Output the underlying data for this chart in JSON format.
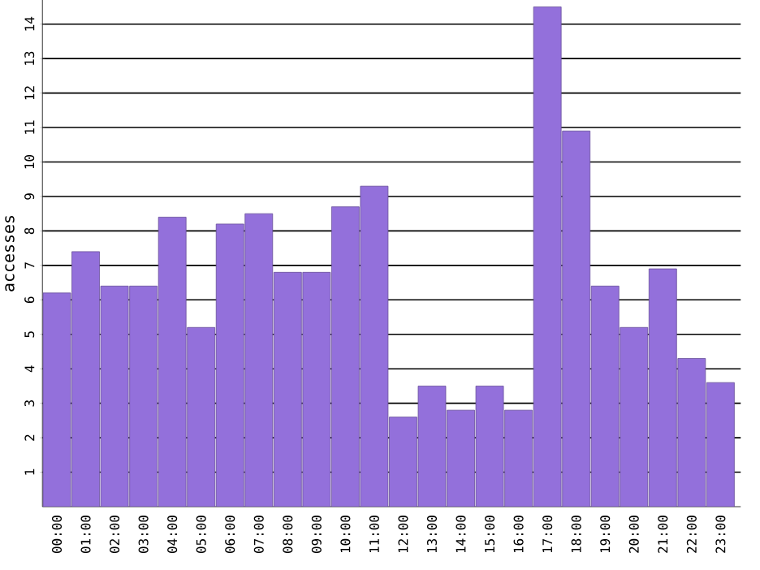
{
  "chart_data": {
    "type": "bar",
    "ylabel": "accesses",
    "categories": [
      "00:00",
      "01:00",
      "02:00",
      "03:00",
      "04:00",
      "05:00",
      "06:00",
      "07:00",
      "08:00",
      "09:00",
      "10:00",
      "11:00",
      "12:00",
      "13:00",
      "14:00",
      "15:00",
      "16:00",
      "17:00",
      "18:00",
      "19:00",
      "20:00",
      "21:00",
      "22:00",
      "23:00"
    ],
    "values": [
      6.2,
      7.4,
      6.4,
      6.4,
      8.4,
      5.2,
      8.2,
      8.5,
      6.8,
      6.8,
      8.7,
      9.3,
      2.6,
      3.5,
      2.8,
      3.5,
      2.8,
      14.5,
      10.9,
      6.4,
      5.2,
      6.9,
      4.3,
      3.6
    ],
    "color": "#9370db",
    "ylim": [
      0,
      14.7
    ],
    "yticks": [
      1,
      2,
      3,
      4,
      5,
      6,
      7,
      8,
      9,
      10,
      11,
      12,
      13,
      14
    ],
    "grid": "y"
  }
}
